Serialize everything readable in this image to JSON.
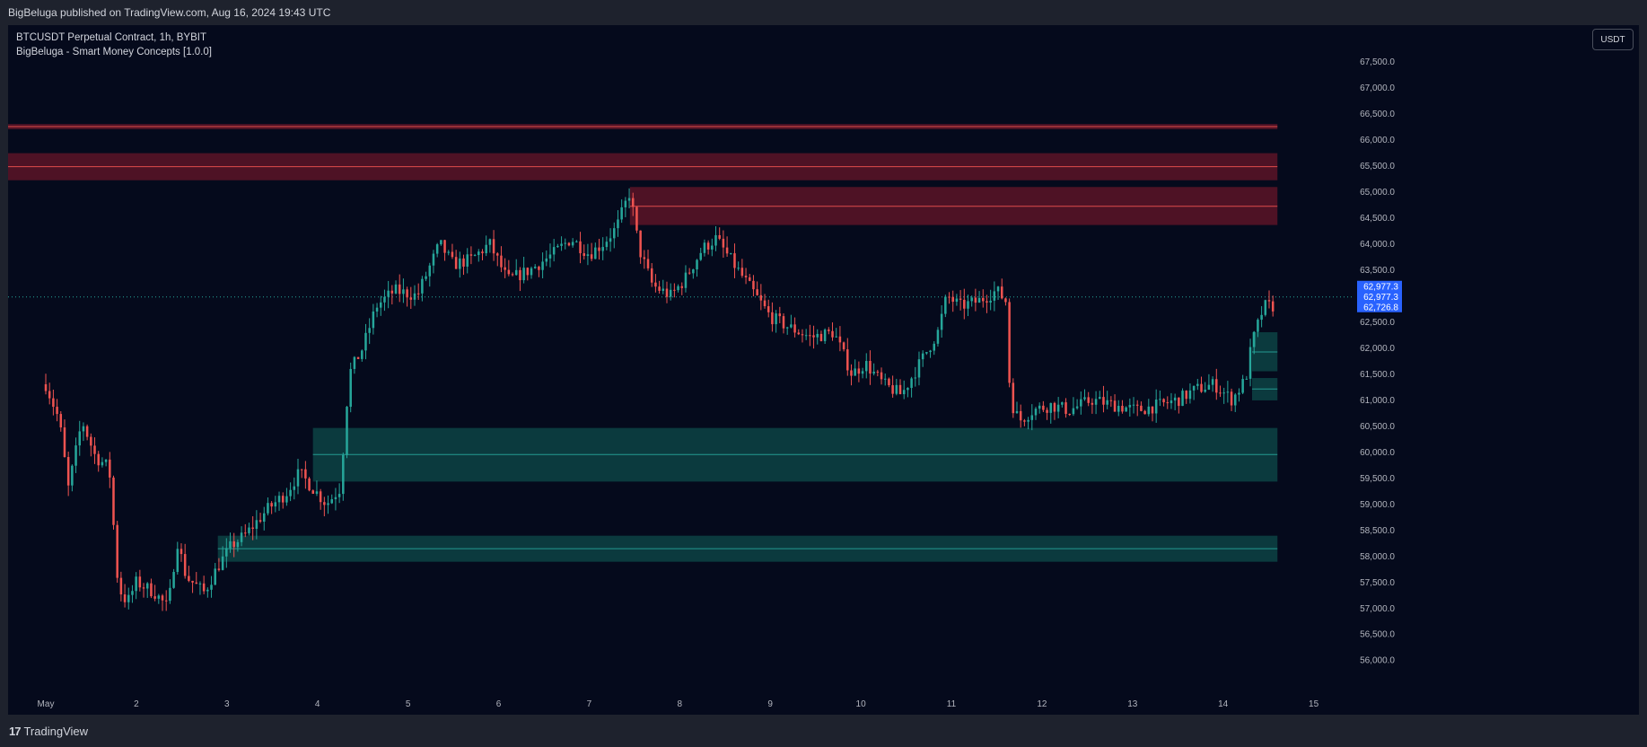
{
  "header": {
    "published": "BigBeluga published on TradingView.com, Aug 16, 2024 19:43 UTC"
  },
  "legend": {
    "symbol": "BTCUSDT Perpetual Contract, 1h, BYBIT",
    "indicator": "BigBeluga - Smart Money Concepts [1.0.0]"
  },
  "currency_button": "USDT",
  "footer": {
    "brand": "TradingView",
    "logo_mark": "17"
  },
  "colors": {
    "background": "#050a1c",
    "up": "#26a69a",
    "down": "#ef5350",
    "supply_zone": "#8b1a2e",
    "demand_zone": "#0f5a55",
    "axis_text": "#b2b5be",
    "price_label": "#2962ff"
  },
  "chart_data": {
    "type": "candlestick",
    "symbol": "BTCUSDT",
    "timeframe": "1h",
    "x_ticks": [
      "May",
      "2",
      "3",
      "4",
      "5",
      "6",
      "7",
      "8",
      "9",
      "10",
      "11",
      "12",
      "13",
      "14",
      "15"
    ],
    "y_ticks": [
      56000,
      56500,
      57000,
      57500,
      58000,
      58500,
      59000,
      59500,
      60000,
      60500,
      61000,
      61500,
      62000,
      62500,
      63000,
      63500,
      64000,
      64500,
      65000,
      65500,
      66000,
      66500,
      67000,
      67500
    ],
    "y_tick_labels": [
      "56,000.0",
      "56,500.0",
      "57,000.0",
      "57,500.0",
      "58,000.0",
      "58,500.0",
      "59,000.0",
      "59,500.0",
      "60,000.0",
      "60,500.0",
      "61,000.0",
      "61,500.0",
      "62,000.0",
      "62,500.0",
      "63,000.0",
      "63,500.0",
      "64,000.0",
      "64,500.0",
      "65,000.0",
      "65,500.0",
      "66,000.0",
      "66,500.0",
      "67,000.0",
      "67,500.0"
    ],
    "ylim": [
      55400,
      68200
    ],
    "xlim_days": [
      0.0,
      15.0
    ],
    "path": [
      [
        0.0,
        61300
      ],
      [
        0.15,
        60600
      ],
      [
        0.25,
        59300
      ],
      [
        0.4,
        60600
      ],
      [
        0.55,
        59900
      ],
      [
        0.7,
        59700
      ],
      [
        0.8,
        57400
      ],
      [
        0.9,
        57100
      ],
      [
        1.0,
        57500
      ],
      [
        1.2,
        57300
      ],
      [
        1.35,
        57000
      ],
      [
        1.45,
        58300
      ],
      [
        1.55,
        57600
      ],
      [
        1.75,
        57300
      ],
      [
        1.9,
        57800
      ],
      [
        2.05,
        58200
      ],
      [
        2.2,
        58400
      ],
      [
        2.45,
        58900
      ],
      [
        2.65,
        59200
      ],
      [
        2.8,
        59600
      ],
      [
        3.0,
        59200
      ],
      [
        3.1,
        59000
      ],
      [
        3.25,
        59300
      ],
      [
        3.35,
        61500
      ],
      [
        3.5,
        62000
      ],
      [
        3.65,
        62800
      ],
      [
        3.85,
        63100
      ],
      [
        4.1,
        63000
      ],
      [
        4.35,
        64000
      ],
      [
        4.5,
        63600
      ],
      [
        4.7,
        63700
      ],
      [
        4.9,
        64000
      ],
      [
        5.1,
        63300
      ],
      [
        5.35,
        63500
      ],
      [
        5.6,
        63800
      ],
      [
        5.8,
        64100
      ],
      [
        6.0,
        63800
      ],
      [
        6.15,
        64000
      ],
      [
        6.3,
        64300
      ],
      [
        6.45,
        65000
      ],
      [
        6.55,
        63900
      ],
      [
        6.7,
        63200
      ],
      [
        6.9,
        63000
      ],
      [
        7.05,
        63300
      ],
      [
        7.25,
        63900
      ],
      [
        7.4,
        64100
      ],
      [
        7.6,
        63600
      ],
      [
        7.8,
        63100
      ],
      [
        8.0,
        62600
      ],
      [
        8.2,
        62400
      ],
      [
        8.45,
        62200
      ],
      [
        8.7,
        62300
      ],
      [
        8.9,
        61500
      ],
      [
        9.05,
        61700
      ],
      [
        9.25,
        61300
      ],
      [
        9.45,
        61100
      ],
      [
        9.65,
        61700
      ],
      [
        9.85,
        62300
      ],
      [
        9.95,
        63000
      ],
      [
        10.1,
        62800
      ],
      [
        10.3,
        62900
      ],
      [
        10.5,
        63100
      ],
      [
        10.6,
        62900
      ],
      [
        10.65,
        61000
      ],
      [
        10.75,
        60600
      ],
      [
        10.9,
        60800
      ],
      [
        11.1,
        60900
      ],
      [
        11.3,
        60800
      ],
      [
        11.55,
        61000
      ],
      [
        11.8,
        60900
      ],
      [
        12.05,
        60800
      ],
      [
        12.3,
        60900
      ],
      [
        12.5,
        61000
      ],
      [
        12.7,
        61200
      ],
      [
        12.9,
        61300
      ],
      [
        13.1,
        61000
      ],
      [
        13.25,
        61400
      ],
      [
        13.32,
        62100
      ],
      [
        13.45,
        62800
      ],
      [
        13.55,
        62800
      ]
    ],
    "candle_count": 327,
    "zones": [
      {
        "kind": "supply",
        "from_day": 0.0,
        "to_day": 13.6,
        "top": 66300,
        "bottom": 66200,
        "mid": 66250
      },
      {
        "kind": "supply",
        "from_day": 0.0,
        "to_day": 13.6,
        "top": 65740,
        "bottom": 65220,
        "mid": 65480
      },
      {
        "kind": "supply",
        "from_day": 6.45,
        "to_day": 13.6,
        "top": 65090,
        "bottom": 64360,
        "mid": 64720
      },
      {
        "kind": "demand",
        "from_day": 2.95,
        "to_day": 13.6,
        "top": 60460,
        "bottom": 59430,
        "mid": 59950
      },
      {
        "kind": "demand",
        "from_day": 1.9,
        "to_day": 13.6,
        "top": 58390,
        "bottom": 57890,
        "mid": 58140
      },
      {
        "kind": "demand",
        "from_day": 13.32,
        "to_day": 13.6,
        "top": 62300,
        "bottom": 61550,
        "mid": 61920
      },
      {
        "kind": "demand",
        "from_day": 13.32,
        "to_day": 13.6,
        "top": 61420,
        "bottom": 60990,
        "mid": 61210
      }
    ],
    "current_price": 62977.3,
    "price_labels": [
      "62,977.3",
      "62,977.3",
      "62,726.8"
    ]
  }
}
